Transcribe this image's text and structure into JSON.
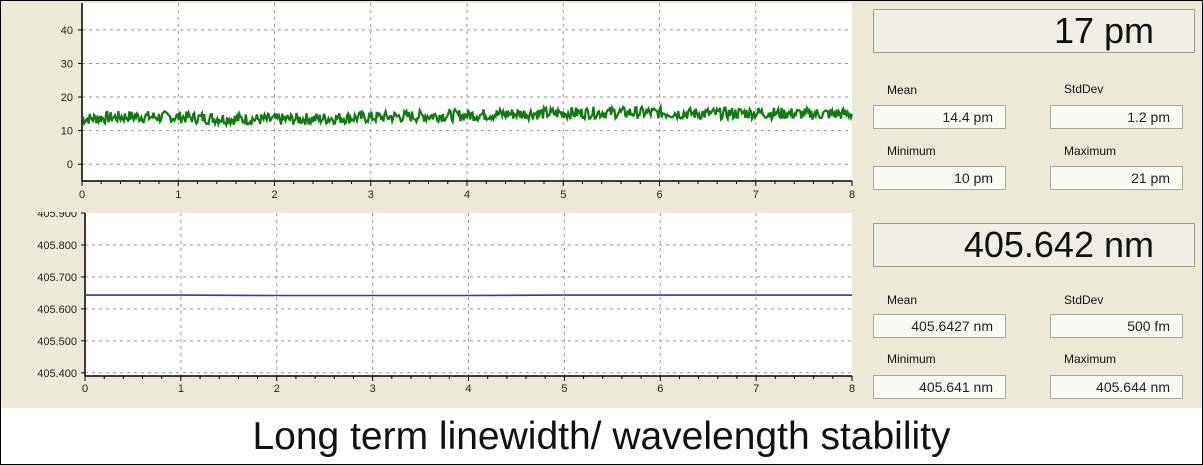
{
  "caption": "Long term linewidth/ wavelength stability",
  "linewidth": {
    "current": "17 pm",
    "stats": {
      "mean_label": "Mean",
      "mean_value": "14.4 pm",
      "stddev_label": "StdDev",
      "stddev_value": "1.2 pm",
      "min_label": "Minimum",
      "min_value": "10 pm",
      "max_label": "Maximum",
      "max_value": "21 pm"
    }
  },
  "wavelength": {
    "current": "405.642 nm",
    "stats": {
      "mean_label": "Mean",
      "mean_value": "405.6427 nm",
      "stddev_label": "StdDev",
      "stddev_value": "500 fm",
      "min_label": "Minimum",
      "min_value": "405.641 nm",
      "max_label": "Maximum",
      "max_value": "405.644 nm"
    }
  },
  "chart_data": [
    {
      "type": "line",
      "color": "#117a11",
      "grid": true,
      "xlim": [
        0,
        8
      ],
      "ylim": [
        -5,
        48
      ],
      "x_ticks": [
        "0",
        "1",
        "2",
        "3",
        "4",
        "5",
        "6",
        "7",
        "8"
      ],
      "y_ticks": [
        0,
        10,
        20,
        30,
        40
      ],
      "y_tick_labels": [
        "0",
        "10",
        "20",
        "30",
        "40"
      ],
      "series": [
        {
          "x": [
            0,
            0.5,
            1,
            1.5,
            2,
            2.5,
            3,
            3.5,
            4,
            4.5,
            5,
            5.5,
            6,
            6.5,
            7,
            7.5,
            8
          ],
          "y": [
            13.5,
            14.2,
            14.0,
            13.5,
            13.3,
            13.6,
            14.0,
            14.3,
            14.6,
            15.0,
            15.2,
            15.4,
            15.3,
            15.0,
            15.3,
            15.0,
            15.0
          ],
          "band": 1.8
        }
      ]
    },
    {
      "type": "line",
      "color": "#3333cc",
      "grid": true,
      "xlim": [
        0,
        8
      ],
      "ylim": [
        405.39,
        405.9
      ],
      "x_ticks": [
        "0",
        "1",
        "2",
        "3",
        "4",
        "5",
        "6",
        "7",
        "8"
      ],
      "y_ticks": [
        405.4,
        405.5,
        405.6,
        405.7,
        405.8,
        405.9
      ],
      "y_tick_labels": [
        "405.400",
        "405.500",
        "405.600",
        "405.700",
        "405.800",
        "405.900"
      ],
      "series": [
        {
          "x": [
            0,
            1,
            2,
            3,
            4,
            5,
            6,
            7,
            8
          ],
          "y": [
            405.643,
            405.643,
            405.642,
            405.642,
            405.642,
            405.643,
            405.643,
            405.643,
            405.643
          ]
        }
      ]
    }
  ]
}
